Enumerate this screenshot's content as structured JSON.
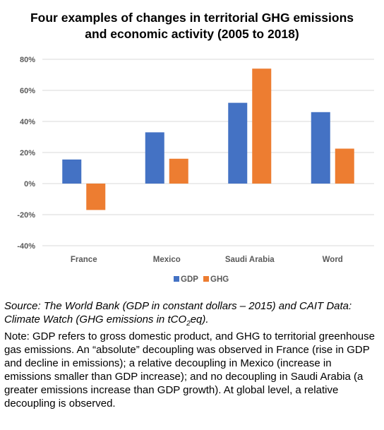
{
  "header": {
    "title_line1": "Four examples of changes in territorial GHG emissions",
    "title_line2": "and economic activity (2005 to 2018)"
  },
  "colors": {
    "gdp": "#4472c4",
    "ghg": "#ed7d31",
    "grid": "#d9d9d9",
    "axis_text": "#595959"
  },
  "chart_data": {
    "type": "bar",
    "title": "Four examples of changes in territorial GHG emissions and economic activity (2005 to 2018)",
    "categories": [
      "France",
      "Mexico",
      "Saudi Arabia",
      "Word"
    ],
    "series": [
      {
        "name": "GDP",
        "values": [
          15.5,
          33,
          52,
          46
        ]
      },
      {
        "name": "GHG",
        "values": [
          -17,
          16,
          74,
          22.5
        ]
      }
    ],
    "ylim": [
      -40,
      80
    ],
    "yticks": [
      -40,
      -20,
      0,
      20,
      40,
      60,
      80
    ],
    "ytick_labels": [
      "-40%",
      "-20%",
      "0%",
      "20%",
      "40%",
      "60%",
      "80%"
    ],
    "xlabel": "",
    "ylabel": "",
    "grid": true,
    "legend_position": "bottom"
  },
  "footer": {
    "source_prefix": "Source: The World Bank (GDP in constant dollars – 2015) and CAIT Data: Climate Watch (GHG emissions in tCO",
    "source_sub": "2",
    "source_suffix": "eq).",
    "note": "Note: GDP refers to gross domestic product, and GHG to territorial greenhouse gas emissions. An “absolute” decoupling was observed in France (rise in GDP and decline in emissions); a relative decoupling in Mexico (increase in emissions smaller than GDP increase); and no decoupling in Saudi Arabia (a greater emissions increase than GDP growth). At global level, a relative decoupling is observed."
  }
}
